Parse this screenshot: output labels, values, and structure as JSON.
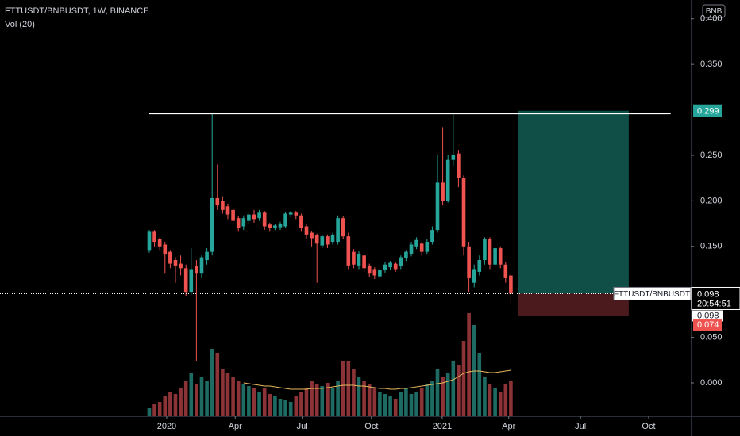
{
  "chart_data": {
    "type": "candlestick",
    "title": "FTTUSDT/BNBUSDT, 1W, BINANCE",
    "indicator": "Vol (20)",
    "currency": "BNB",
    "up_color": "#26a69a",
    "down_color": "#ef5350",
    "volume_up_color": "#1e6b64",
    "volume_down_color": "#8b3336",
    "volume_ma_color": "#e6b85c",
    "x": [
      0,
      1,
      2,
      3,
      4,
      5,
      6,
      7,
      8,
      9,
      10,
      11,
      12,
      13,
      14,
      15,
      16,
      17,
      18,
      19,
      20,
      21,
      22,
      23,
      24,
      25,
      26,
      27,
      28,
      29,
      30,
      31,
      32,
      33,
      34,
      35,
      36,
      37,
      38,
      39,
      40,
      41,
      42,
      43,
      44,
      45,
      46,
      47,
      48,
      49,
      50,
      51,
      52,
      53,
      54,
      55,
      56,
      57,
      58,
      59,
      60,
      61,
      62,
      63,
      64,
      65,
      66,
      67,
      68,
      69
    ],
    "open": [
      0.146,
      0.166,
      0.158,
      0.152,
      0.144,
      0.135,
      0.131,
      0.126,
      0.1,
      0.128,
      0.12,
      0.135,
      0.144,
      0.203,
      0.2,
      0.194,
      0.19,
      0.181,
      0.172,
      0.178,
      0.185,
      0.181,
      0.187,
      0.174,
      0.17,
      0.171,
      0.172,
      0.185,
      0.187,
      0.184,
      0.172,
      0.165,
      0.162,
      0.151,
      0.161,
      0.155,
      0.155,
      0.181,
      0.161,
      0.144,
      0.129,
      0.14,
      0.129,
      0.125,
      0.117,
      0.124,
      0.127,
      0.131,
      0.128,
      0.137,
      0.142,
      0.15,
      0.153,
      0.144,
      0.155,
      0.168,
      0.22,
      0.2,
      0.245,
      0.252,
      0.225,
      0.15,
      0.11,
      0.122,
      0.135,
      0.158,
      0.13,
      0.148,
      0.13,
      0.118
    ],
    "high": [
      0.168,
      0.168,
      0.16,
      0.155,
      0.146,
      0.138,
      0.14,
      0.13,
      0.148,
      0.135,
      0.14,
      0.148,
      0.296,
      0.24,
      0.205,
      0.197,
      0.192,
      0.183,
      0.184,
      0.188,
      0.19,
      0.19,
      0.189,
      0.176,
      0.175,
      0.177,
      0.188,
      0.189,
      0.189,
      0.186,
      0.174,
      0.167,
      0.164,
      0.163,
      0.163,
      0.165,
      0.184,
      0.183,
      0.165,
      0.147,
      0.145,
      0.142,
      0.131,
      0.127,
      0.126,
      0.133,
      0.134,
      0.133,
      0.14,
      0.146,
      0.155,
      0.16,
      0.155,
      0.158,
      0.172,
      0.25,
      0.281,
      0.25,
      0.296,
      0.256,
      0.228,
      0.155,
      0.13,
      0.14,
      0.16,
      0.16,
      0.15,
      0.15,
      0.133,
      0.12
    ],
    "low": [
      0.143,
      0.15,
      0.146,
      0.12,
      0.126,
      0.11,
      0.118,
      0.095,
      0.097,
      0.024,
      0.115,
      0.13,
      0.14,
      0.19,
      0.186,
      0.18,
      0.175,
      0.166,
      0.168,
      0.175,
      0.176,
      0.178,
      0.168,
      0.166,
      0.168,
      0.168,
      0.17,
      0.182,
      0.18,
      0.166,
      0.158,
      0.15,
      0.11,
      0.148,
      0.148,
      0.152,
      0.152,
      0.158,
      0.125,
      0.126,
      0.125,
      0.122,
      0.116,
      0.114,
      0.114,
      0.121,
      0.124,
      0.122,
      0.125,
      0.134,
      0.139,
      0.147,
      0.14,
      0.141,
      0.152,
      0.165,
      0.195,
      0.198,
      0.238,
      0.215,
      0.14,
      0.1,
      0.105,
      0.118,
      0.13,
      0.125,
      0.127,
      0.126,
      0.11,
      0.088
    ],
    "close": [
      0.166,
      0.155,
      0.15,
      0.141,
      0.131,
      0.129,
      0.126,
      0.1,
      0.125,
      0.12,
      0.138,
      0.144,
      0.203,
      0.195,
      0.19,
      0.185,
      0.178,
      0.17,
      0.181,
      0.185,
      0.18,
      0.187,
      0.172,
      0.17,
      0.173,
      0.175,
      0.186,
      0.187,
      0.184,
      0.17,
      0.163,
      0.159,
      0.153,
      0.161,
      0.152,
      0.163,
      0.181,
      0.161,
      0.129,
      0.13,
      0.142,
      0.126,
      0.12,
      0.118,
      0.124,
      0.13,
      0.132,
      0.125,
      0.138,
      0.144,
      0.152,
      0.157,
      0.144,
      0.155,
      0.168,
      0.22,
      0.2,
      0.245,
      0.25,
      0.225,
      0.15,
      0.115,
      0.125,
      0.135,
      0.158,
      0.13,
      0.148,
      0.13,
      0.115,
      0.098
    ],
    "volume": [
      10,
      15,
      18,
      25,
      30,
      28,
      35,
      45,
      55,
      40,
      50,
      45,
      85,
      80,
      60,
      55,
      50,
      45,
      40,
      38,
      35,
      30,
      35,
      28,
      25,
      22,
      20,
      18,
      25,
      30,
      35,
      45,
      40,
      38,
      42,
      35,
      45,
      70,
      70,
      60,
      50,
      45,
      40,
      35,
      30,
      28,
      25,
      22,
      30,
      35,
      28,
      30,
      35,
      40,
      45,
      60,
      50,
      55,
      70,
      65,
      95,
      130,
      115,
      80,
      50,
      40,
      35,
      30,
      40,
      45
    ],
    "volume_ma": [
      null,
      null,
      null,
      null,
      null,
      null,
      null,
      null,
      null,
      null,
      null,
      null,
      null,
      null,
      null,
      null,
      null,
      null,
      42,
      41,
      40,
      39,
      38,
      38,
      37,
      36,
      35,
      34,
      34,
      34,
      34,
      35,
      35,
      35,
      36,
      37,
      38,
      39,
      39,
      39,
      38,
      38,
      37,
      36,
      35,
      35,
      34,
      34,
      35,
      35,
      36,
      37,
      38,
      39,
      40,
      41,
      42,
      44,
      46,
      50,
      54,
      56,
      57,
      57,
      56,
      55,
      55,
      56,
      57,
      58
    ],
    "xlim": [
      -28.48,
      103.33
    ],
    "xticks": [
      {
        "value": 3.33,
        "label": "2020"
      },
      {
        "value": 16.4,
        "label": "Apr"
      },
      {
        "value": 29.2,
        "label": "Jul"
      },
      {
        "value": 42.4,
        "label": "Oct"
      },
      {
        "value": 55.9,
        "label": "2021"
      },
      {
        "value": 68.6,
        "label": "Apr"
      },
      {
        "value": 82.3,
        "label": "Jul"
      },
      {
        "value": 95.3,
        "label": "Oct"
      }
    ],
    "ylim": [
      -0.0366,
      0.4207
    ],
    "yticks": [
      {
        "value": 0.4,
        "label": "0.400"
      },
      {
        "value": 0.35,
        "label": "0.350"
      },
      {
        "value": 0.25,
        "label": "0.250"
      },
      {
        "value": 0.2,
        "label": "0.200"
      },
      {
        "value": 0.15,
        "label": "0.150"
      },
      {
        "value": 0.05,
        "label": "0.050"
      },
      {
        "value": 0,
        "label": "0.000"
      }
    ],
    "y2lim": [
      0,
      525
    ],
    "resistance": {
      "value": 0.296,
      "x_start": 0,
      "x_end": 99.5
    },
    "position": {
      "x_start": 70.3,
      "x_end": 91.5,
      "entry": 0.098,
      "target": 0.299,
      "stop": 0.074,
      "profit_color": "#0f4f48",
      "loss_color": "#4a1a1c"
    },
    "last_price": 0.098,
    "symbol_label": "FTTUSDT/BNBUSDT",
    "countdown": "20:54:51"
  }
}
